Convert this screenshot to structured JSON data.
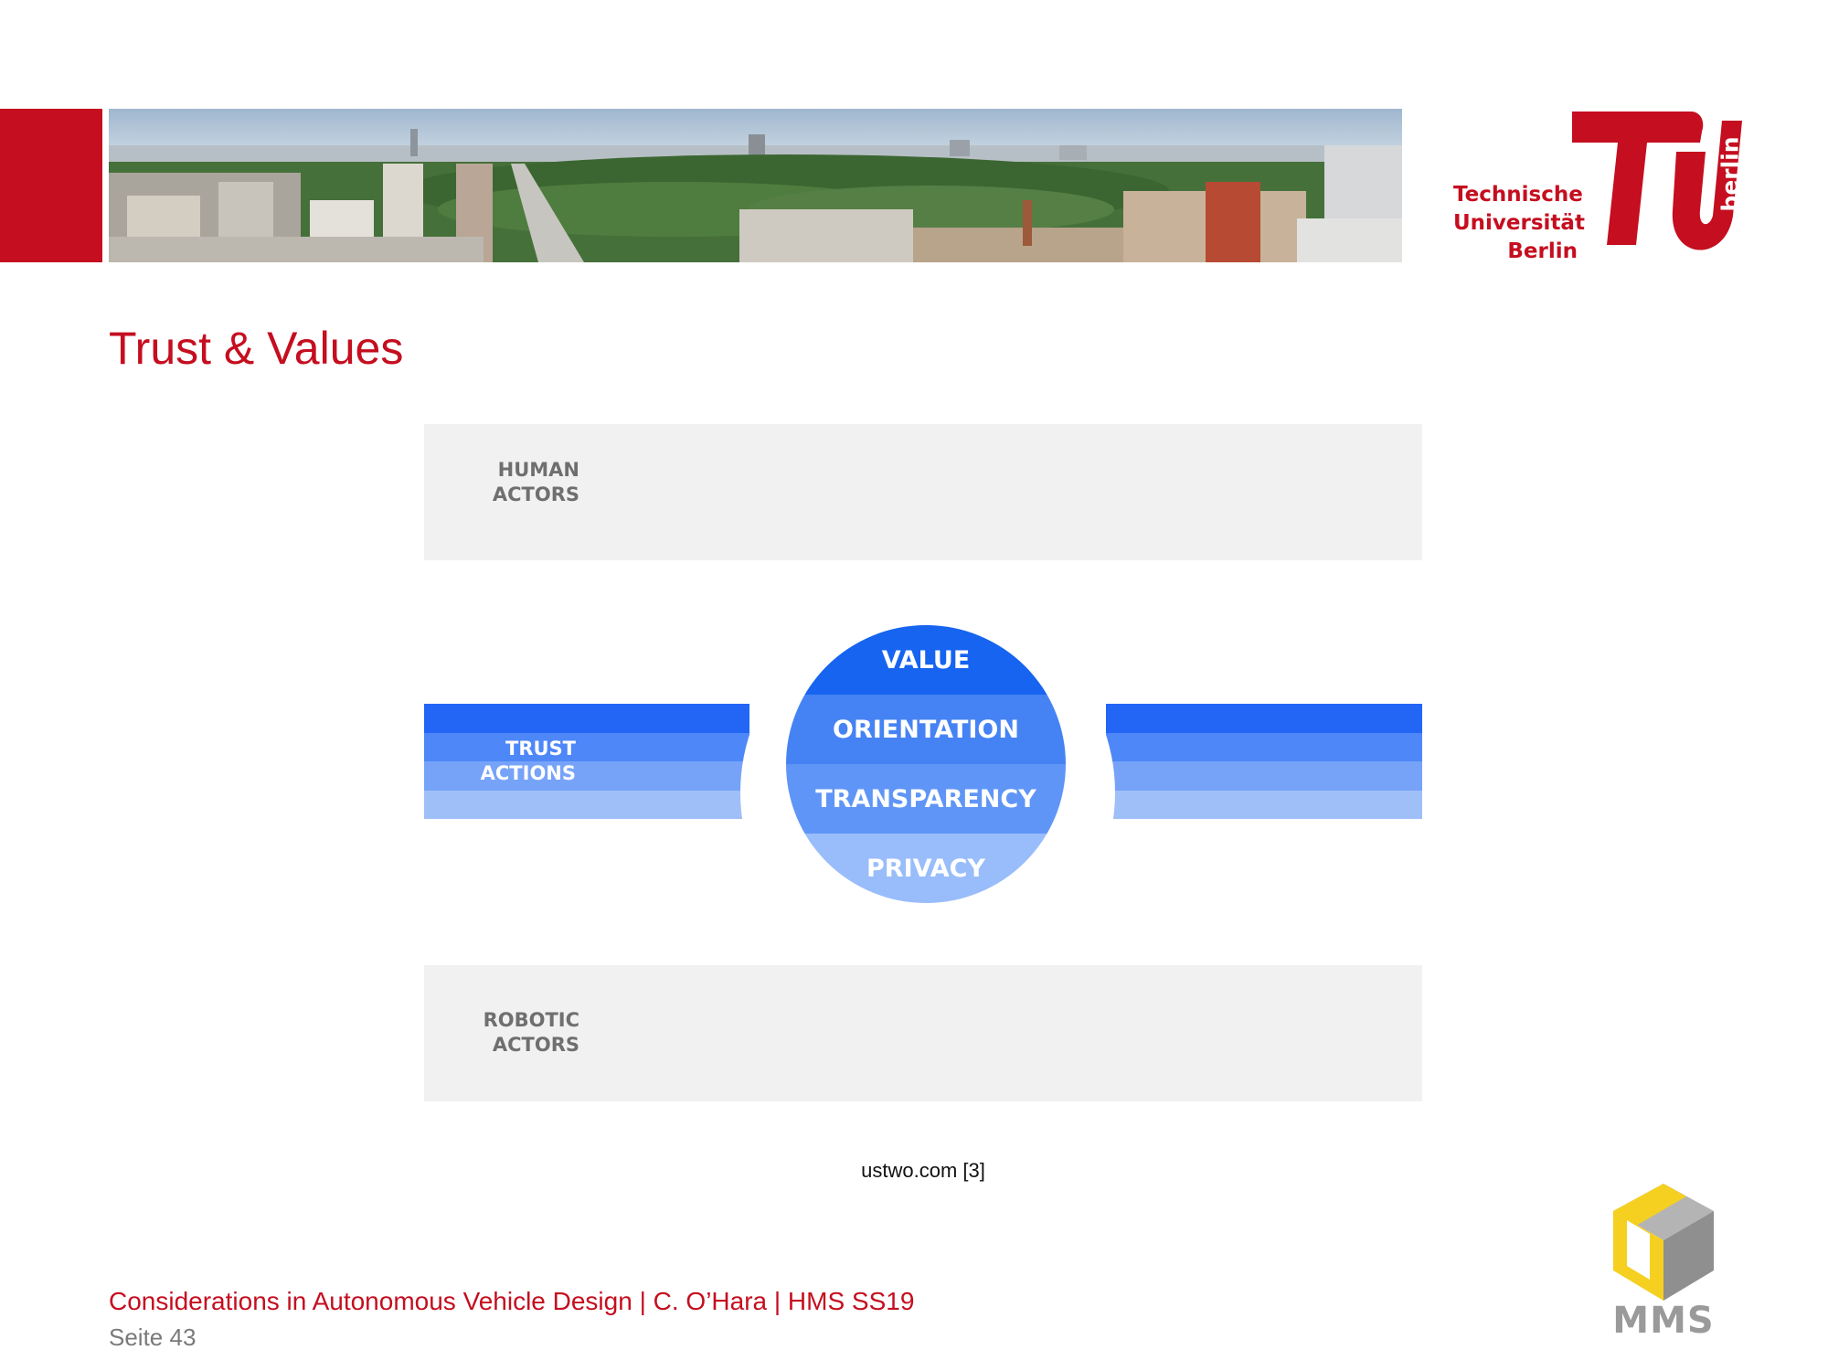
{
  "header": {
    "banner_description_icon": "city-panorama-image",
    "logo": {
      "wordmark_lines": [
        "Technische",
        "Universität",
        "Berlin"
      ],
      "berlin": "berlin"
    }
  },
  "slide": {
    "title": "Trust & Values"
  },
  "diagram": {
    "human_actors": [
      "HUMAN",
      "ACTORS"
    ],
    "robotic_actors": [
      "ROBOTIC",
      "ACTORS"
    ],
    "trust_actions": [
      "TRUST",
      "ACTIONS"
    ],
    "circle_layers": [
      "VALUE",
      "ORIENTATION",
      "TRANSPARENCY",
      "PRIVACY"
    ],
    "source": "ustwo.com [3]"
  },
  "footer": {
    "course_line": "Considerations in Autonomous Vehicle Design | C. O’Hara | HMS SS19",
    "page": "Seite 43",
    "mms_logo": "MMS"
  },
  "colors": {
    "tu_red": "#c50e1f",
    "blue_dark": "#1664f0",
    "blue_light": "#99bdfa",
    "panel_gray": "#f1f1f1",
    "mms_yellow": "#f5d020",
    "mms_gray": "#9a9a9a"
  }
}
